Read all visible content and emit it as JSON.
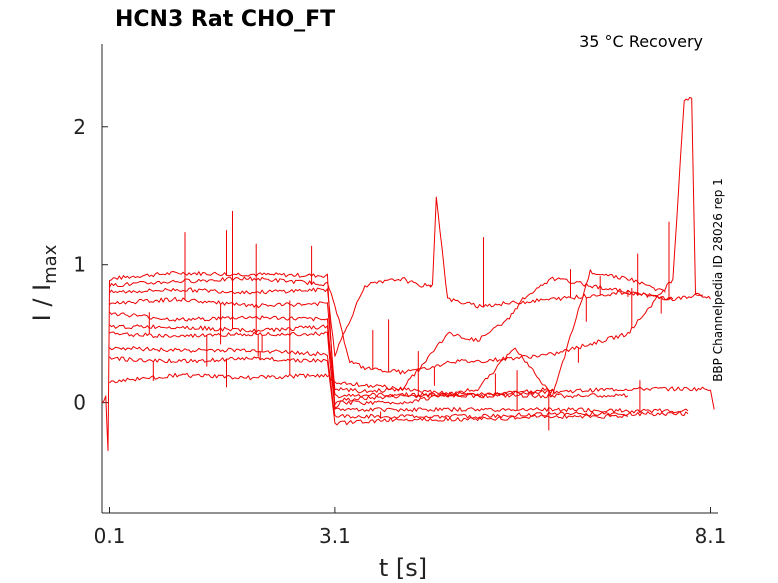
{
  "chart_data": {
    "type": "line",
    "title": "HCN3  Rat  CHO_FT",
    "condition": "35 °C  Recovery",
    "side_label": "BBP Channelpedia ID 28026 rep 1",
    "xlabel": "t [s]",
    "ylabel_main": "I / I",
    "ylabel_sub": "max",
    "xlim": [
      0.0,
      8.2
    ],
    "ylim": [
      -0.8,
      2.6
    ],
    "xticks": [
      0.1,
      3.1,
      8.1
    ],
    "xtick_labels": [
      "0.1",
      "3.1",
      "8.1"
    ],
    "yticks": [
      0,
      1,
      2
    ],
    "ytick_labels": [
      "0",
      "1",
      "2"
    ],
    "grid": false,
    "series_color": "#ee0000",
    "series": [
      {
        "x": [
          0.0,
          0.05,
          0.08,
          0.1,
          0.15,
          0.5,
          1.0,
          2.0,
          3.0,
          3.1,
          3.2,
          4.0,
          5.0,
          6.0,
          7.0,
          8.1,
          8.15
        ],
        "y": [
          0.0,
          0.05,
          -0.35,
          0.88,
          0.9,
          0.92,
          0.94,
          0.93,
          0.92,
          -0.05,
          0.02,
          0.05,
          0.06,
          0.08,
          0.1,
          0.1,
          -0.05
        ]
      },
      {
        "x": [
          0.1,
          1.0,
          2.0,
          3.0,
          3.1,
          3.3,
          3.5,
          4.0,
          4.4,
          4.6,
          5.0,
          6.0,
          7.0,
          7.6,
          7.75,
          7.85,
          7.9,
          8.1
        ],
        "y": [
          0.85,
          0.88,
          0.9,
          0.86,
          0.7,
          0.3,
          0.25,
          0.22,
          0.25,
          0.3,
          0.3,
          0.35,
          0.5,
          0.9,
          2.2,
          2.2,
          0.8,
          0.75
        ]
      },
      {
        "x": [
          0.1,
          1.0,
          2.0,
          3.0,
          3.1,
          3.5,
          4.0,
          4.2,
          4.4,
          4.45,
          4.6,
          5.0,
          6.0,
          7.0,
          7.6,
          8.0
        ],
        "y": [
          0.8,
          0.82,
          0.8,
          0.82,
          0.35,
          0.85,
          0.9,
          0.85,
          0.85,
          1.5,
          0.75,
          0.7,
          0.75,
          0.8,
          0.75,
          0.78
        ]
      },
      {
        "x": [
          0.1,
          1.0,
          2.0,
          3.0,
          3.1,
          3.5,
          4.0,
          4.6,
          5.0,
          5.4,
          5.6,
          6.0,
          7.0,
          7.6
        ],
        "y": [
          0.72,
          0.75,
          0.7,
          0.72,
          0.1,
          0.08,
          0.1,
          0.5,
          0.45,
          0.6,
          0.75,
          0.9,
          0.8,
          0.75
        ]
      },
      {
        "x": [
          0.1,
          1.0,
          2.0,
          3.0,
          3.1,
          4.0,
          5.0,
          6.0,
          6.5,
          7.0,
          7.5
        ],
        "y": [
          0.65,
          0.6,
          0.62,
          0.6,
          0.05,
          0.06,
          0.05,
          0.05,
          0.95,
          0.9,
          0.8
        ]
      },
      {
        "x": [
          0.1,
          1.0,
          2.0,
          3.0,
          3.1,
          4.0,
          5.0,
          5.5,
          6.0,
          7.0
        ],
        "y": [
          0.55,
          0.55,
          0.52,
          0.55,
          0.0,
          0.0,
          0.1,
          0.4,
          0.05,
          0.05
        ]
      },
      {
        "x": [
          0.1,
          1.0,
          2.0,
          3.0,
          3.1,
          4.0,
          5.0,
          6.0,
          7.0,
          7.8
        ],
        "y": [
          0.5,
          0.48,
          0.5,
          0.5,
          -0.05,
          -0.05,
          -0.05,
          -0.05,
          -0.06,
          -0.06
        ]
      },
      {
        "x": [
          0.1,
          1.0,
          2.0,
          3.0,
          3.1,
          4.0,
          5.0,
          6.0,
          7.0,
          7.8
        ],
        "y": [
          0.4,
          0.38,
          0.38,
          0.35,
          -0.1,
          -0.1,
          -0.1,
          -0.08,
          -0.08,
          -0.08
        ]
      },
      {
        "x": [
          0.1,
          1.0,
          2.0,
          3.0,
          3.1,
          4.0,
          5.0,
          6.0,
          7.0
        ],
        "y": [
          0.32,
          0.3,
          0.32,
          0.3,
          -0.15,
          -0.12,
          -0.12,
          -0.1,
          -0.1
        ]
      },
      {
        "x": [
          0.1,
          1.0,
          2.0,
          3.0,
          3.1,
          4.0,
          5.0,
          6.0
        ],
        "y": [
          0.15,
          0.2,
          0.18,
          0.2,
          0.15,
          0.1,
          0.05,
          0.1
        ]
      }
    ]
  }
}
